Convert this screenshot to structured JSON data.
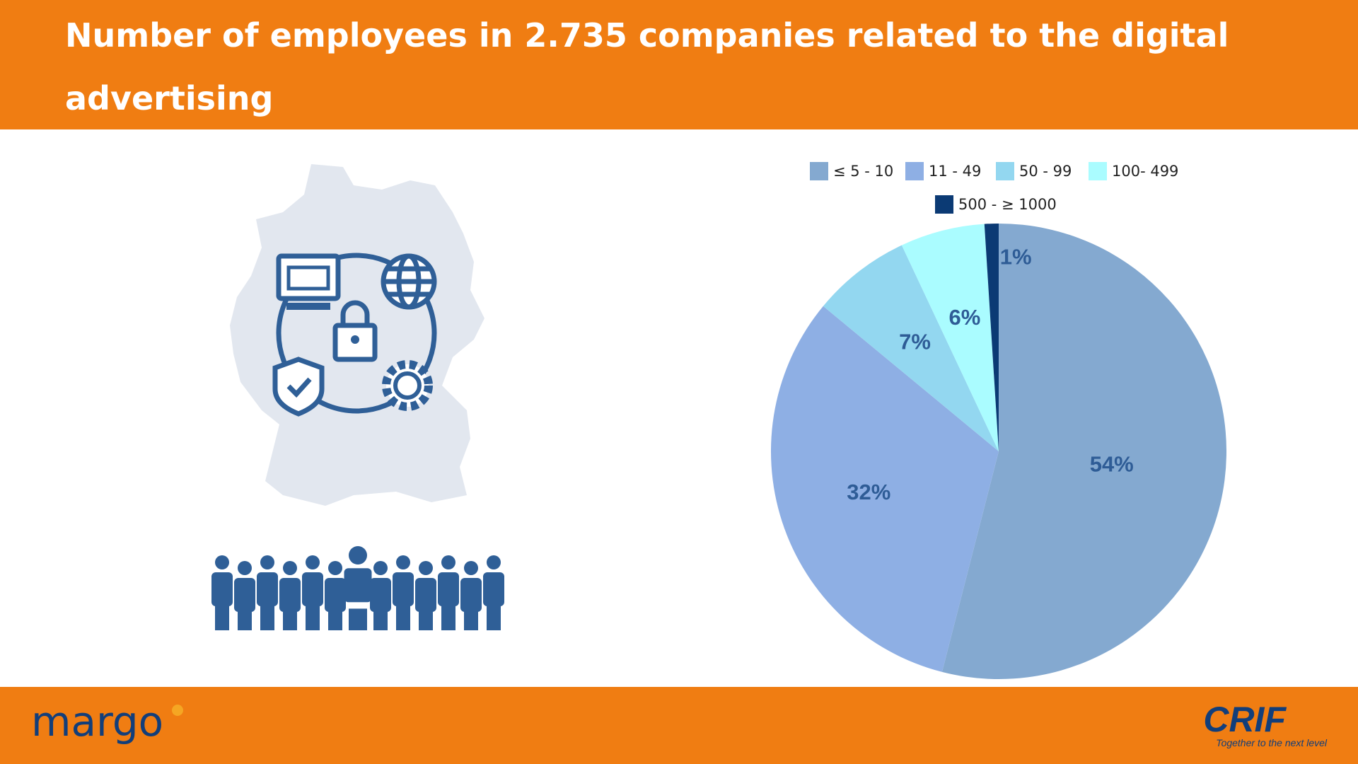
{
  "chart_data": {
    "type": "pie",
    "title": "Number of employees in 2.735 companies related to the digital advertising",
    "categories": [
      "≤ 5 - 10",
      "11 - 49",
      "50 - 99",
      "100- 499",
      "500 - ≥ 1000"
    ],
    "values": [
      54,
      32,
      7,
      6,
      1
    ],
    "value_labels": [
      "54%",
      "32%",
      "7%",
      "6%",
      "1%"
    ],
    "colors": [
      "#84a9d0",
      "#8eafe4",
      "#93d7f0",
      "#aafcff",
      "#0b3a74"
    ],
    "legend": "top"
  },
  "footer": {
    "left_logo": "margo",
    "right_logo": "CRIF",
    "tagline": "Together to the next level"
  }
}
